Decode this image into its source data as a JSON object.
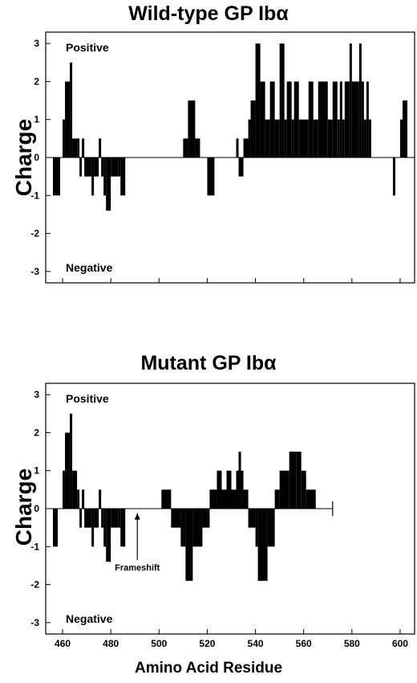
{
  "xlabel": "Amino Acid Residue",
  "chart_data": [
    {
      "type": "bar",
      "title": "Wild-type GP Ibα",
      "ylabel": "Charge",
      "xlabel": "",
      "xlim": [
        453,
        606
      ],
      "ylim": [
        -3.3,
        3.3
      ],
      "yticks": [
        3,
        2,
        1,
        0,
        -1,
        -2,
        -3
      ],
      "xticks": [
        460,
        480,
        500,
        520,
        540,
        560,
        580,
        600
      ],
      "show_xtick_labels": false,
      "annotations": {
        "top": "Positive",
        "bottom": "Negative"
      },
      "bars": [
        {
          "x0": 456,
          "x1": 459,
          "y": -1
        },
        {
          "x0": 460,
          "x1": 461,
          "y": 1
        },
        {
          "x0": 461,
          "x1": 463,
          "y": 2
        },
        {
          "x0": 463,
          "x1": 464,
          "y": 2.5
        },
        {
          "x0": 464,
          "x1": 466,
          "y": 0.5
        },
        {
          "x0": 466,
          "x1": 467,
          "y": 0.5
        },
        {
          "x0": 467,
          "x1": 468,
          "y": -0.5
        },
        {
          "x0": 468,
          "x1": 469,
          "y": 0.5
        },
        {
          "x0": 469,
          "x1": 472,
          "y": -0.5
        },
        {
          "x0": 472,
          "x1": 473,
          "y": -1
        },
        {
          "x0": 473,
          "x1": 475,
          "y": -0.5
        },
        {
          "x0": 475,
          "x1": 476,
          "y": 0.5
        },
        {
          "x0": 476,
          "x1": 477,
          "y": -0.5
        },
        {
          "x0": 477,
          "x1": 478,
          "y": -1
        },
        {
          "x0": 478,
          "x1": 480,
          "y": -1.4
        },
        {
          "x0": 480,
          "x1": 483,
          "y": -0.5
        },
        {
          "x0": 483,
          "x1": 484,
          "y": -0.5
        },
        {
          "x0": 484,
          "x1": 486,
          "y": -1
        },
        {
          "x0": 510,
          "x1": 512,
          "y": 0.5
        },
        {
          "x0": 512,
          "x1": 515,
          "y": 1.5
        },
        {
          "x0": 515,
          "x1": 517,
          "y": 0.5
        },
        {
          "x0": 520,
          "x1": 523,
          "y": -1
        },
        {
          "x0": 532,
          "x1": 533,
          "y": 0.5
        },
        {
          "x0": 533,
          "x1": 535,
          "y": -0.5
        },
        {
          "x0": 535,
          "x1": 537,
          "y": 0.5
        },
        {
          "x0": 537,
          "x1": 538,
          "y": 1
        },
        {
          "x0": 538,
          "x1": 540,
          "y": 1.5
        },
        {
          "x0": 540,
          "x1": 542,
          "y": 3
        },
        {
          "x0": 542,
          "x1": 544,
          "y": 2
        },
        {
          "x0": 544,
          "x1": 546,
          "y": 1
        },
        {
          "x0": 546,
          "x1": 548,
          "y": 2
        },
        {
          "x0": 548,
          "x1": 550,
          "y": 1
        },
        {
          "x0": 550,
          "x1": 552,
          "y": 3
        },
        {
          "x0": 552,
          "x1": 553,
          "y": 1
        },
        {
          "x0": 553,
          "x1": 555,
          "y": 2
        },
        {
          "x0": 555,
          "x1": 556,
          "y": 1
        },
        {
          "x0": 556,
          "x1": 558,
          "y": 2
        },
        {
          "x0": 558,
          "x1": 562,
          "y": 1
        },
        {
          "x0": 562,
          "x1": 564,
          "y": 2
        },
        {
          "x0": 564,
          "x1": 566,
          "y": 1
        },
        {
          "x0": 566,
          "x1": 570,
          "y": 2
        },
        {
          "x0": 570,
          "x1": 572,
          "y": 1
        },
        {
          "x0": 572,
          "x1": 574,
          "y": 2
        },
        {
          "x0": 574,
          "x1": 575,
          "y": 1
        },
        {
          "x0": 575,
          "x1": 576,
          "y": 2
        },
        {
          "x0": 576,
          "x1": 577,
          "y": 1
        },
        {
          "x0": 577,
          "x1": 579,
          "y": 2
        },
        {
          "x0": 579,
          "x1": 580,
          "y": 3
        },
        {
          "x0": 580,
          "x1": 583,
          "y": 2
        },
        {
          "x0": 583,
          "x1": 584,
          "y": 3
        },
        {
          "x0": 584,
          "x1": 585,
          "y": 2
        },
        {
          "x0": 585,
          "x1": 586,
          "y": 1
        },
        {
          "x0": 586,
          "x1": 587,
          "y": 2
        },
        {
          "x0": 587,
          "x1": 588,
          "y": 1
        },
        {
          "x0": 597,
          "x1": 598,
          "y": -1
        },
        {
          "x0": 600,
          "x1": 601,
          "y": 1
        },
        {
          "x0": 601,
          "x1": 603,
          "y": 1.5
        }
      ]
    },
    {
      "type": "bar",
      "title": "Mutant GP Ibα",
      "ylabel": "Charge",
      "xlabel": "Amino Acid Residue",
      "xlim": [
        453,
        606
      ],
      "ylim": [
        -3.3,
        3.3
      ],
      "yticks": [
        3,
        2,
        1,
        0,
        -1,
        -2,
        -3
      ],
      "xticks": [
        460,
        480,
        500,
        520,
        540,
        560,
        580,
        600
      ],
      "show_xtick_labels": true,
      "annotations": {
        "top": "Positive",
        "bottom": "Negative",
        "arrow_label": "Frameshift",
        "arrow_x": 491
      },
      "baseline_end": 572,
      "bars": [
        {
          "x0": 456,
          "x1": 458,
          "y": -1
        },
        {
          "x0": 460,
          "x1": 461,
          "y": 1
        },
        {
          "x0": 461,
          "x1": 463,
          "y": 2
        },
        {
          "x0": 463,
          "x1": 464,
          "y": 2.5
        },
        {
          "x0": 464,
          "x1": 466,
          "y": 1
        },
        {
          "x0": 466,
          "x1": 467,
          "y": 0.5
        },
        {
          "x0": 467,
          "x1": 468,
          "y": -0.5
        },
        {
          "x0": 468,
          "x1": 469,
          "y": 0.5
        },
        {
          "x0": 469,
          "x1": 472,
          "y": -0.5
        },
        {
          "x0": 472,
          "x1": 473,
          "y": -1
        },
        {
          "x0": 473,
          "x1": 475,
          "y": -0.5
        },
        {
          "x0": 475,
          "x1": 476,
          "y": 0.5
        },
        {
          "x0": 476,
          "x1": 477,
          "y": -0.5
        },
        {
          "x0": 477,
          "x1": 478,
          "y": -1
        },
        {
          "x0": 478,
          "x1": 480,
          "y": -1.4
        },
        {
          "x0": 480,
          "x1": 483,
          "y": -0.5
        },
        {
          "x0": 483,
          "x1": 484,
          "y": -0.5
        },
        {
          "x0": 484,
          "x1": 486,
          "y": -1
        },
        {
          "x0": 501,
          "x1": 505,
          "y": 0.5
        },
        {
          "x0": 505,
          "x1": 509,
          "y": -0.5
        },
        {
          "x0": 509,
          "x1": 511,
          "y": -1
        },
        {
          "x0": 511,
          "x1": 514,
          "y": -1.9
        },
        {
          "x0": 514,
          "x1": 518,
          "y": -1
        },
        {
          "x0": 518,
          "x1": 521,
          "y": -0.5
        },
        {
          "x0": 521,
          "x1": 524,
          "y": 0.5
        },
        {
          "x0": 524,
          "x1": 526,
          "y": 1
        },
        {
          "x0": 526,
          "x1": 528,
          "y": 0.5
        },
        {
          "x0": 528,
          "x1": 530,
          "y": 1
        },
        {
          "x0": 530,
          "x1": 532,
          "y": 0.5
        },
        {
          "x0": 532,
          "x1": 533,
          "y": 1
        },
        {
          "x0": 533,
          "x1": 534,
          "y": 1.5
        },
        {
          "x0": 534,
          "x1": 535,
          "y": 1
        },
        {
          "x0": 535,
          "x1": 537,
          "y": 0.5
        },
        {
          "x0": 537,
          "x1": 540,
          "y": -0.5
        },
        {
          "x0": 540,
          "x1": 541,
          "y": -1
        },
        {
          "x0": 541,
          "x1": 545,
          "y": -1.9
        },
        {
          "x0": 545,
          "x1": 548,
          "y": -1
        },
        {
          "x0": 548,
          "x1": 550,
          "y": 0.5
        },
        {
          "x0": 550,
          "x1": 554,
          "y": 1
        },
        {
          "x0": 554,
          "x1": 557,
          "y": 1.5
        },
        {
          "x0": 557,
          "x1": 559,
          "y": 1.5
        },
        {
          "x0": 559,
          "x1": 561,
          "y": 1
        },
        {
          "x0": 561,
          "x1": 565,
          "y": 0.5
        }
      ]
    }
  ]
}
